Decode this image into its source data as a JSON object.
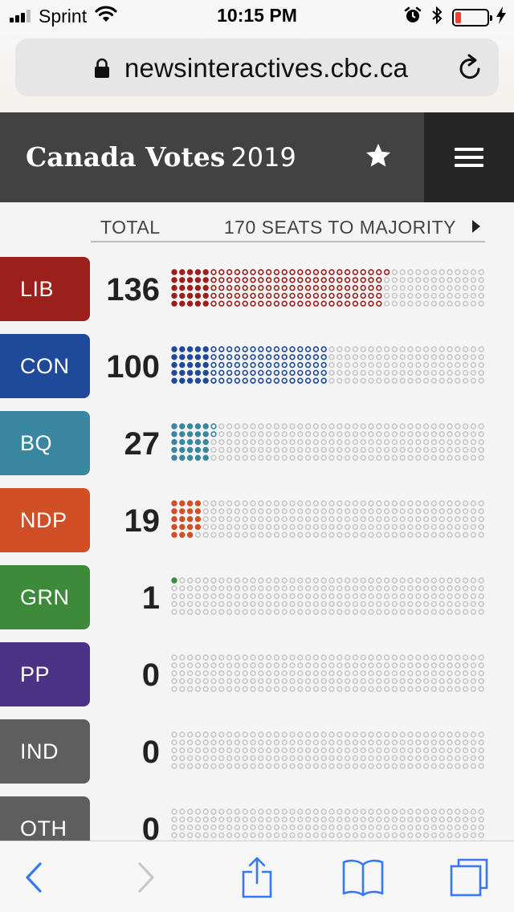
{
  "status_bar": {
    "carrier": "Sprint",
    "time": "10:15 PM",
    "battery_level": 0.18,
    "battery_color": "#ff3b30",
    "icons": [
      "signal-icon",
      "wifi-icon",
      "alarm-icon",
      "bluetooth-icon",
      "battery-icon",
      "charging-bolt-icon"
    ]
  },
  "browser": {
    "url": "newsinteractives.cbc.ca",
    "icons": [
      "lock-icon",
      "reload-icon"
    ]
  },
  "header": {
    "title_bold": "Canada Votes",
    "title_year": "2019",
    "background": "#424242",
    "menu_background": "#262626",
    "icons": [
      "star-icon",
      "hamburger-menu-icon"
    ]
  },
  "table": {
    "total_label": "TOTAL",
    "majority_label": "170 SEATS TO MAJORITY"
  },
  "parties": [
    {
      "abbr": "LIB",
      "seats": "136",
      "color": "#9b1f1b"
    },
    {
      "abbr": "CON",
      "seats": "100",
      "color": "#1f4a9a"
    },
    {
      "abbr": "BQ",
      "seats": "27",
      "color": "#3a86a0"
    },
    {
      "abbr": "NDP",
      "seats": "19",
      "color": "#d24e24"
    },
    {
      "abbr": "GRN",
      "seats": "1",
      "color": "#3d8a3a"
    },
    {
      "abbr": "PP",
      "seats": "0",
      "color": "#4a3385"
    },
    {
      "abbr": "IND",
      "seats": "0",
      "color": "#5e5e5e"
    },
    {
      "abbr": "OTH",
      "seats": "0",
      "color": "#5e5e5e"
    }
  ],
  "dot_empty_color": "#c8c8c8",
  "toolbar": {
    "accent": "#3478f6",
    "icons": [
      "back-icon",
      "forward-icon",
      "share-icon",
      "bookmarks-icon",
      "tabs-icon"
    ]
  }
}
